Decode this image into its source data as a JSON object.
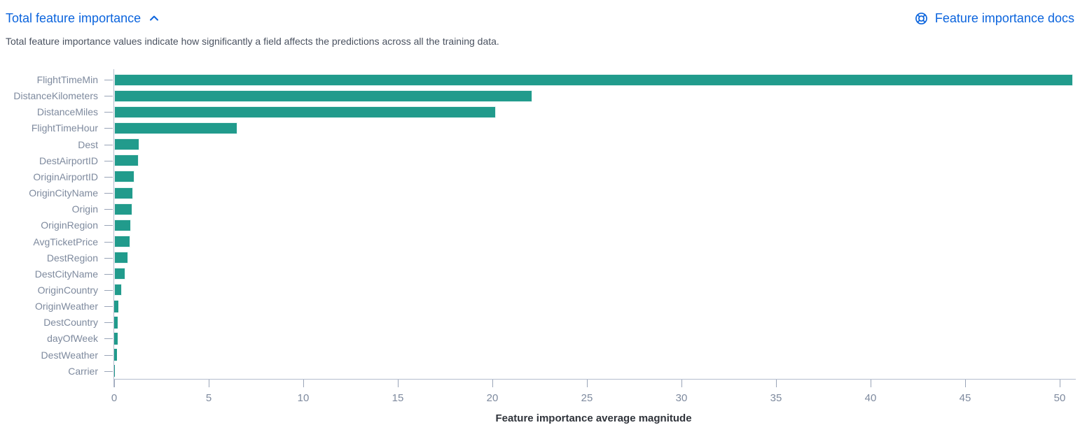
{
  "header": {
    "title": "Total feature importance",
    "docs_link_label": "Feature importance docs"
  },
  "description": "Total feature importance values indicate how significantly a field affects the predictions across all the training data.",
  "icons": {
    "collapse": "chevron-up-icon",
    "docs": "lifebuoy-help-icon"
  },
  "colors": {
    "accent_blue": "#0B64DD",
    "bar_teal": "#219B8C",
    "axis_label": "#7E8A9E",
    "axis_line": "#B4BDCE",
    "axis_title_text": "#30343B",
    "description_text": "#4A5260"
  },
  "chart_data": {
    "type": "bar",
    "orientation": "horizontal",
    "title": "",
    "xlabel": "Feature importance average magnitude",
    "ylabel": "",
    "xlim": [
      0,
      50.7
    ],
    "x_ticks": [
      0,
      5,
      10,
      15,
      20,
      25,
      30,
      35,
      40,
      45,
      50
    ],
    "grid": false,
    "legend": "none",
    "bar_color": "#219B8C",
    "categories": [
      "FlightTimeMin",
      "DistanceKilometers",
      "DistanceMiles",
      "FlightTimeHour",
      "Dest",
      "DestAirportID",
      "OriginAirportID",
      "OriginCityName",
      "Origin",
      "OriginRegion",
      "AvgTicketPrice",
      "DestRegion",
      "DestCityName",
      "OriginCountry",
      "OriginWeather",
      "DestCountry",
      "dayOfWeek",
      "DestWeather",
      "Carrier"
    ],
    "values": [
      50.7,
      22.1,
      20.2,
      6.5,
      1.35,
      1.3,
      1.07,
      1.0,
      0.95,
      0.9,
      0.87,
      0.74,
      0.6,
      0.42,
      0.21,
      0.19,
      0.17,
      0.15,
      0.05
    ]
  }
}
